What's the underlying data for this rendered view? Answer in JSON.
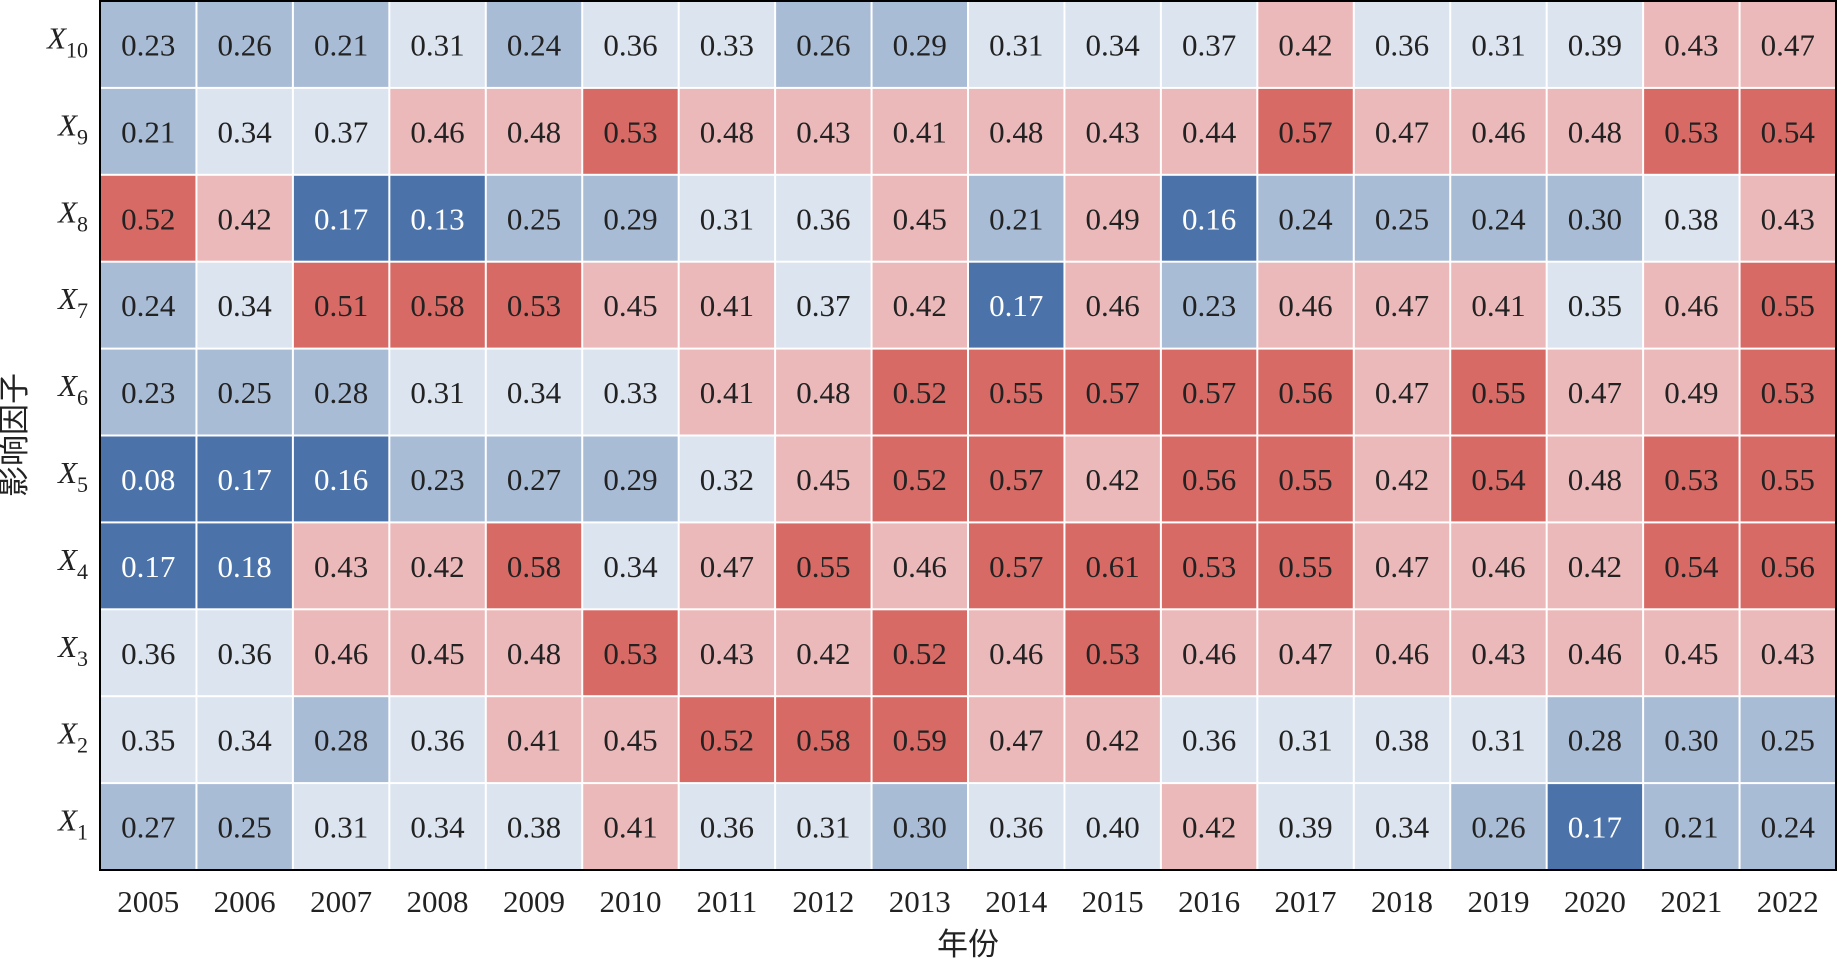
{
  "chart_data": {
    "type": "heatmap",
    "title": "",
    "xlabel": "年份",
    "ylabel": "影响因子",
    "x_categories": [
      "2005",
      "2006",
      "2007",
      "2008",
      "2009",
      "2010",
      "2011",
      "2012",
      "2013",
      "2014",
      "2015",
      "2016",
      "2017",
      "2018",
      "2019",
      "2020",
      "2021",
      "2022"
    ],
    "y_categories": [
      {
        "base": "X",
        "sub": "10"
      },
      {
        "base": "X",
        "sub": "9"
      },
      {
        "base": "X",
        "sub": "8"
      },
      {
        "base": "X",
        "sub": "7"
      },
      {
        "base": "X",
        "sub": "6"
      },
      {
        "base": "X",
        "sub": "5"
      },
      {
        "base": "X",
        "sub": "4"
      },
      {
        "base": "X",
        "sub": "3"
      },
      {
        "base": "X",
        "sub": "2"
      },
      {
        "base": "X",
        "sub": "1"
      }
    ],
    "values": [
      [
        0.23,
        0.26,
        0.21,
        0.31,
        0.24,
        0.36,
        0.33,
        0.26,
        0.29,
        0.31,
        0.34,
        0.37,
        0.42,
        0.36,
        0.31,
        0.39,
        0.43,
        0.47
      ],
      [
        0.21,
        0.34,
        0.37,
        0.46,
        0.48,
        0.53,
        0.48,
        0.43,
        0.41,
        0.48,
        0.43,
        0.44,
        0.57,
        0.47,
        0.46,
        0.48,
        0.53,
        0.54
      ],
      [
        0.52,
        0.42,
        0.17,
        0.13,
        0.25,
        0.29,
        0.31,
        0.36,
        0.45,
        0.21,
        0.49,
        0.16,
        0.24,
        0.25,
        0.24,
        0.3,
        0.38,
        0.43
      ],
      [
        0.24,
        0.34,
        0.51,
        0.58,
        0.53,
        0.45,
        0.41,
        0.37,
        0.42,
        0.17,
        0.46,
        0.23,
        0.46,
        0.47,
        0.41,
        0.35,
        0.46,
        0.55
      ],
      [
        0.23,
        0.25,
        0.28,
        0.31,
        0.34,
        0.33,
        0.41,
        0.48,
        0.52,
        0.55,
        0.57,
        0.57,
        0.56,
        0.47,
        0.55,
        0.47,
        0.49,
        0.53
      ],
      [
        0.08,
        0.17,
        0.16,
        0.23,
        0.27,
        0.29,
        0.32,
        0.45,
        0.52,
        0.57,
        0.42,
        0.56,
        0.55,
        0.42,
        0.54,
        0.48,
        0.53,
        0.55
      ],
      [
        0.17,
        0.18,
        0.43,
        0.42,
        0.58,
        0.34,
        0.47,
        0.55,
        0.46,
        0.57,
        0.61,
        0.53,
        0.55,
        0.47,
        0.46,
        0.42,
        0.54,
        0.56
      ],
      [
        0.36,
        0.36,
        0.46,
        0.45,
        0.48,
        0.53,
        0.43,
        0.42,
        0.52,
        0.46,
        0.53,
        0.46,
        0.47,
        0.46,
        0.43,
        0.46,
        0.45,
        0.43
      ],
      [
        0.35,
        0.34,
        0.28,
        0.36,
        0.41,
        0.45,
        0.52,
        0.58,
        0.59,
        0.47,
        0.42,
        0.36,
        0.31,
        0.38,
        0.31,
        0.28,
        0.3,
        0.25
      ],
      [
        0.27,
        0.25,
        0.31,
        0.34,
        0.38,
        0.41,
        0.36,
        0.31,
        0.3,
        0.36,
        0.4,
        0.42,
        0.39,
        0.34,
        0.26,
        0.17,
        0.21,
        0.24
      ]
    ],
    "value_labels": [
      [
        "0.23",
        "0.26",
        "0.21",
        "0.31",
        "0.24",
        "0.36",
        "0.33",
        "0.26",
        "0.29",
        "0.31",
        "0.34",
        "0.37",
        "0.42",
        "0.36",
        "0.31",
        "0.39",
        "0.43",
        "0.47"
      ],
      [
        "0.21",
        "0.34",
        "0.37",
        "0.46",
        "0.48",
        "0.53",
        "0.48",
        "0.43",
        "0.41",
        "0.48",
        "0.43",
        "0.44",
        "0.57",
        "0.47",
        "0.46",
        "0.48",
        "0.53",
        "0.54"
      ],
      [
        "0.52",
        "0.42",
        "0.17",
        "0.13",
        "0.25",
        "0.29",
        "0.31",
        "0.36",
        "0.45",
        "0.21",
        "0.49",
        "0.16",
        "0.24",
        "0.25",
        "0.24",
        "0.30",
        "0.38",
        "0.43"
      ],
      [
        "0.24",
        "0.34",
        "0.51",
        "0.58",
        "0.53",
        "0.45",
        "0.41",
        "0.37",
        "0.42",
        "0.17",
        "0.46",
        "0.23",
        "0.46",
        "0.47",
        "0.41",
        "0.35",
        "0.46",
        "0.55"
      ],
      [
        "0.23",
        "0.25",
        "0.28",
        "0.31",
        "0.34",
        "0.33",
        "0.41",
        "0.48",
        "0.52",
        "0.55",
        "0.57",
        "0.57",
        "0.56",
        "0.47",
        "0.55",
        "0.47",
        "0.49",
        "0.53"
      ],
      [
        "0.08",
        "0.17",
        "0.16",
        "0.23",
        "0.27",
        "0.29",
        "0.32",
        "0.45",
        "0.52",
        "0.57",
        "0.42",
        "0.56",
        "0.55",
        "0.42",
        "0.54",
        "0.48",
        "0.53",
        "0.55"
      ],
      [
        "0.17",
        "0.18",
        "0.43",
        "0.42",
        "0.58",
        "0.34",
        "0.47",
        "0.55",
        "0.46",
        "0.57",
        "0.61",
        "0.53",
        "0.55",
        "0.47",
        "0.46",
        "0.42",
        "0.54",
        "0.56"
      ],
      [
        "0.36",
        "0.36",
        "0.46",
        "0.45",
        "0.48",
        "0.53",
        "0.43",
        "0.42",
        "0.52",
        "0.46",
        "0.53",
        "0.46",
        "0.47",
        "0.46",
        "0.43",
        "0.46",
        "0.45",
        "0.43"
      ],
      [
        "0.35",
        "0.34",
        "0.28",
        "0.36",
        "0.41",
        "0.45",
        "0.52",
        "0.58",
        "0.59",
        "0.47",
        "0.42",
        "0.36",
        "0.31",
        "0.38",
        "0.31",
        "0.28",
        "0.30",
        "0.25"
      ],
      [
        "0.27",
        "0.25",
        "0.31",
        "0.34",
        "0.38",
        "0.41",
        "0.36",
        "0.31",
        "0.30",
        "0.36",
        "0.40",
        "0.42",
        "0.39",
        "0.34",
        "0.26",
        "0.17",
        "0.21",
        "0.24"
      ]
    ],
    "color_bins": [
      {
        "max": 0.2,
        "color": "#4b73aa"
      },
      {
        "max": 0.3,
        "color": "#a9bcd6"
      },
      {
        "max": 0.4,
        "color": "#dbe4ef"
      },
      {
        "max": 0.5,
        "color": "#ecb9ba"
      },
      {
        "max": 9.99,
        "color": "#d86a66"
      }
    ],
    "text_colors": {
      "dark_cell": "#ffffff",
      "light_cell": "#222222"
    },
    "grid": false,
    "legend": "none"
  }
}
